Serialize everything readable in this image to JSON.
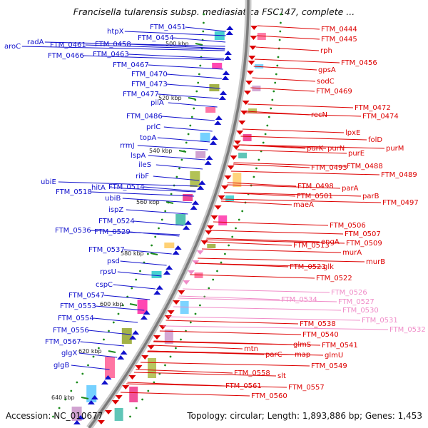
{
  "title": "Francisella tularensis subsp. mediasiatica FSC147, complete ...",
  "footer": {
    "accession": "Accession: NC_010677",
    "topology": "Topology: circular; Length: 1,893,886 bp; Genes: 1,453"
  },
  "colors": {
    "left_strand": "#1010cc",
    "right_strand": "#dd0000",
    "pink_strand": "#f08cc8",
    "backbone": "#888888",
    "tick": "#1a8a1a"
  },
  "ticks": [
    "500 kbp",
    "520 kbp",
    "540 kbp",
    "560 kbp",
    "580 kbp",
    "600 kbp",
    "620 kbp",
    "640 kbp"
  ],
  "left_labels": [
    "FTM_0451",
    "htpX",
    "FTM_0454",
    "radA",
    "FTM_0461",
    "FTM_0458",
    "aroC",
    "FTM_0466",
    "FTM_0463",
    "FTM_0467",
    "FTM_0470",
    "FTM_0473",
    "FTM_0477",
    "pilA",
    "FTM_0486",
    "prlC",
    "topA",
    "rrmJ",
    "lspA",
    "ileS",
    "ribF",
    "ubiE",
    "hitA",
    "FTM_0514",
    "FTM_0518",
    "ubiB",
    "ispZ",
    "FTM_0524",
    "FTM_0536",
    "FTM_0529",
    "FTM_0537",
    "psd",
    "rpsU",
    "cspC",
    "FTM_0547",
    "FTM_0553",
    "FTM_0554",
    "FTM_0556",
    "FTM_0567",
    "glgX",
    "glgB"
  ],
  "right_labels": [
    "FTM_0444",
    "FTM_0445",
    "rph",
    "FTM_0456",
    "gpsA",
    "sodC",
    "FTM_0469",
    "FTM_0472",
    "recN",
    "FTM_0474",
    "lpxE",
    "folD",
    "purK",
    "purN",
    "purE",
    "purM",
    "FTM_0493",
    "FTM_0488",
    "FTM_0489",
    "FTM_0498",
    "parA",
    "FTM_0501",
    "parB",
    "FTM_0497",
    "maeA",
    "FTM_0506",
    "FTM_0507",
    "engA",
    "FTM_0509",
    "FTM_0513",
    "murA",
    "murB",
    "FTM_0523",
    "glk",
    "FTM_0522",
    "FTM_0534",
    "FTM_0526",
    "FTM_0527",
    "FTM_0530",
    "FTM_0531",
    "FTM_0532",
    "FTM_0538",
    "FTM_0540",
    "glmS",
    "FTM_0541",
    "mtn",
    "parC",
    "map",
    "glmU",
    "FTM_0549",
    "FTM_0558",
    "slt",
    "FTM_0557",
    "FTM_0561",
    "FTM_0560"
  ]
}
